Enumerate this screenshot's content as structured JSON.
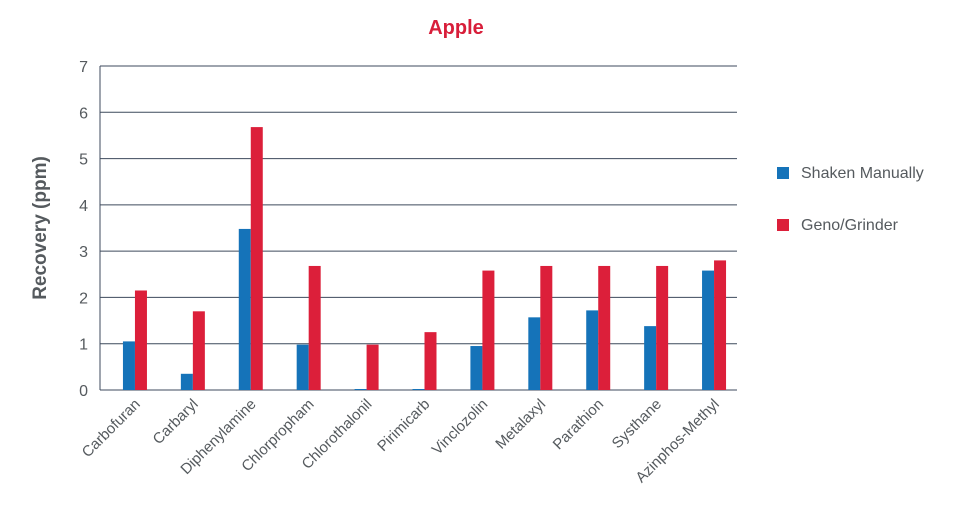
{
  "colors": {
    "title": "#d81e3a",
    "series_1": "#1573b9",
    "series_2": "#dc1f3a",
    "text": "#555a5e",
    "grid": "#3d4a5c"
  },
  "chart_data": {
    "type": "bar",
    "title": "Apple",
    "xlabel": "",
    "ylabel": "Recovery (ppm)",
    "ylim": [
      0,
      7
    ],
    "yticks": [
      "0",
      "1",
      "2",
      "3",
      "4",
      "5",
      "6",
      "7"
    ],
    "grid": true,
    "legend_position": "right",
    "categories": [
      "Carbofuran",
      "Carbaryl",
      "Diphenylamine",
      "Chlorpropham",
      "Chlorothalonil",
      "Pirimicarb",
      "Vinclozolin",
      "Metalaxyl",
      "Parathion",
      "Systhane",
      "Azinphos-Methyl"
    ],
    "series": [
      {
        "name": "Shaken Manually",
        "color": "#1573b9",
        "values": [
          1.05,
          0.35,
          3.48,
          0.98,
          0.02,
          0.02,
          0.95,
          1.57,
          1.72,
          1.38,
          2.58
        ]
      },
      {
        "name": "Geno/Grinder",
        "color": "#dc1f3a",
        "values": [
          2.15,
          1.7,
          5.68,
          2.68,
          0.98,
          1.25,
          2.58,
          2.68,
          2.68,
          2.68,
          2.8
        ]
      }
    ]
  }
}
